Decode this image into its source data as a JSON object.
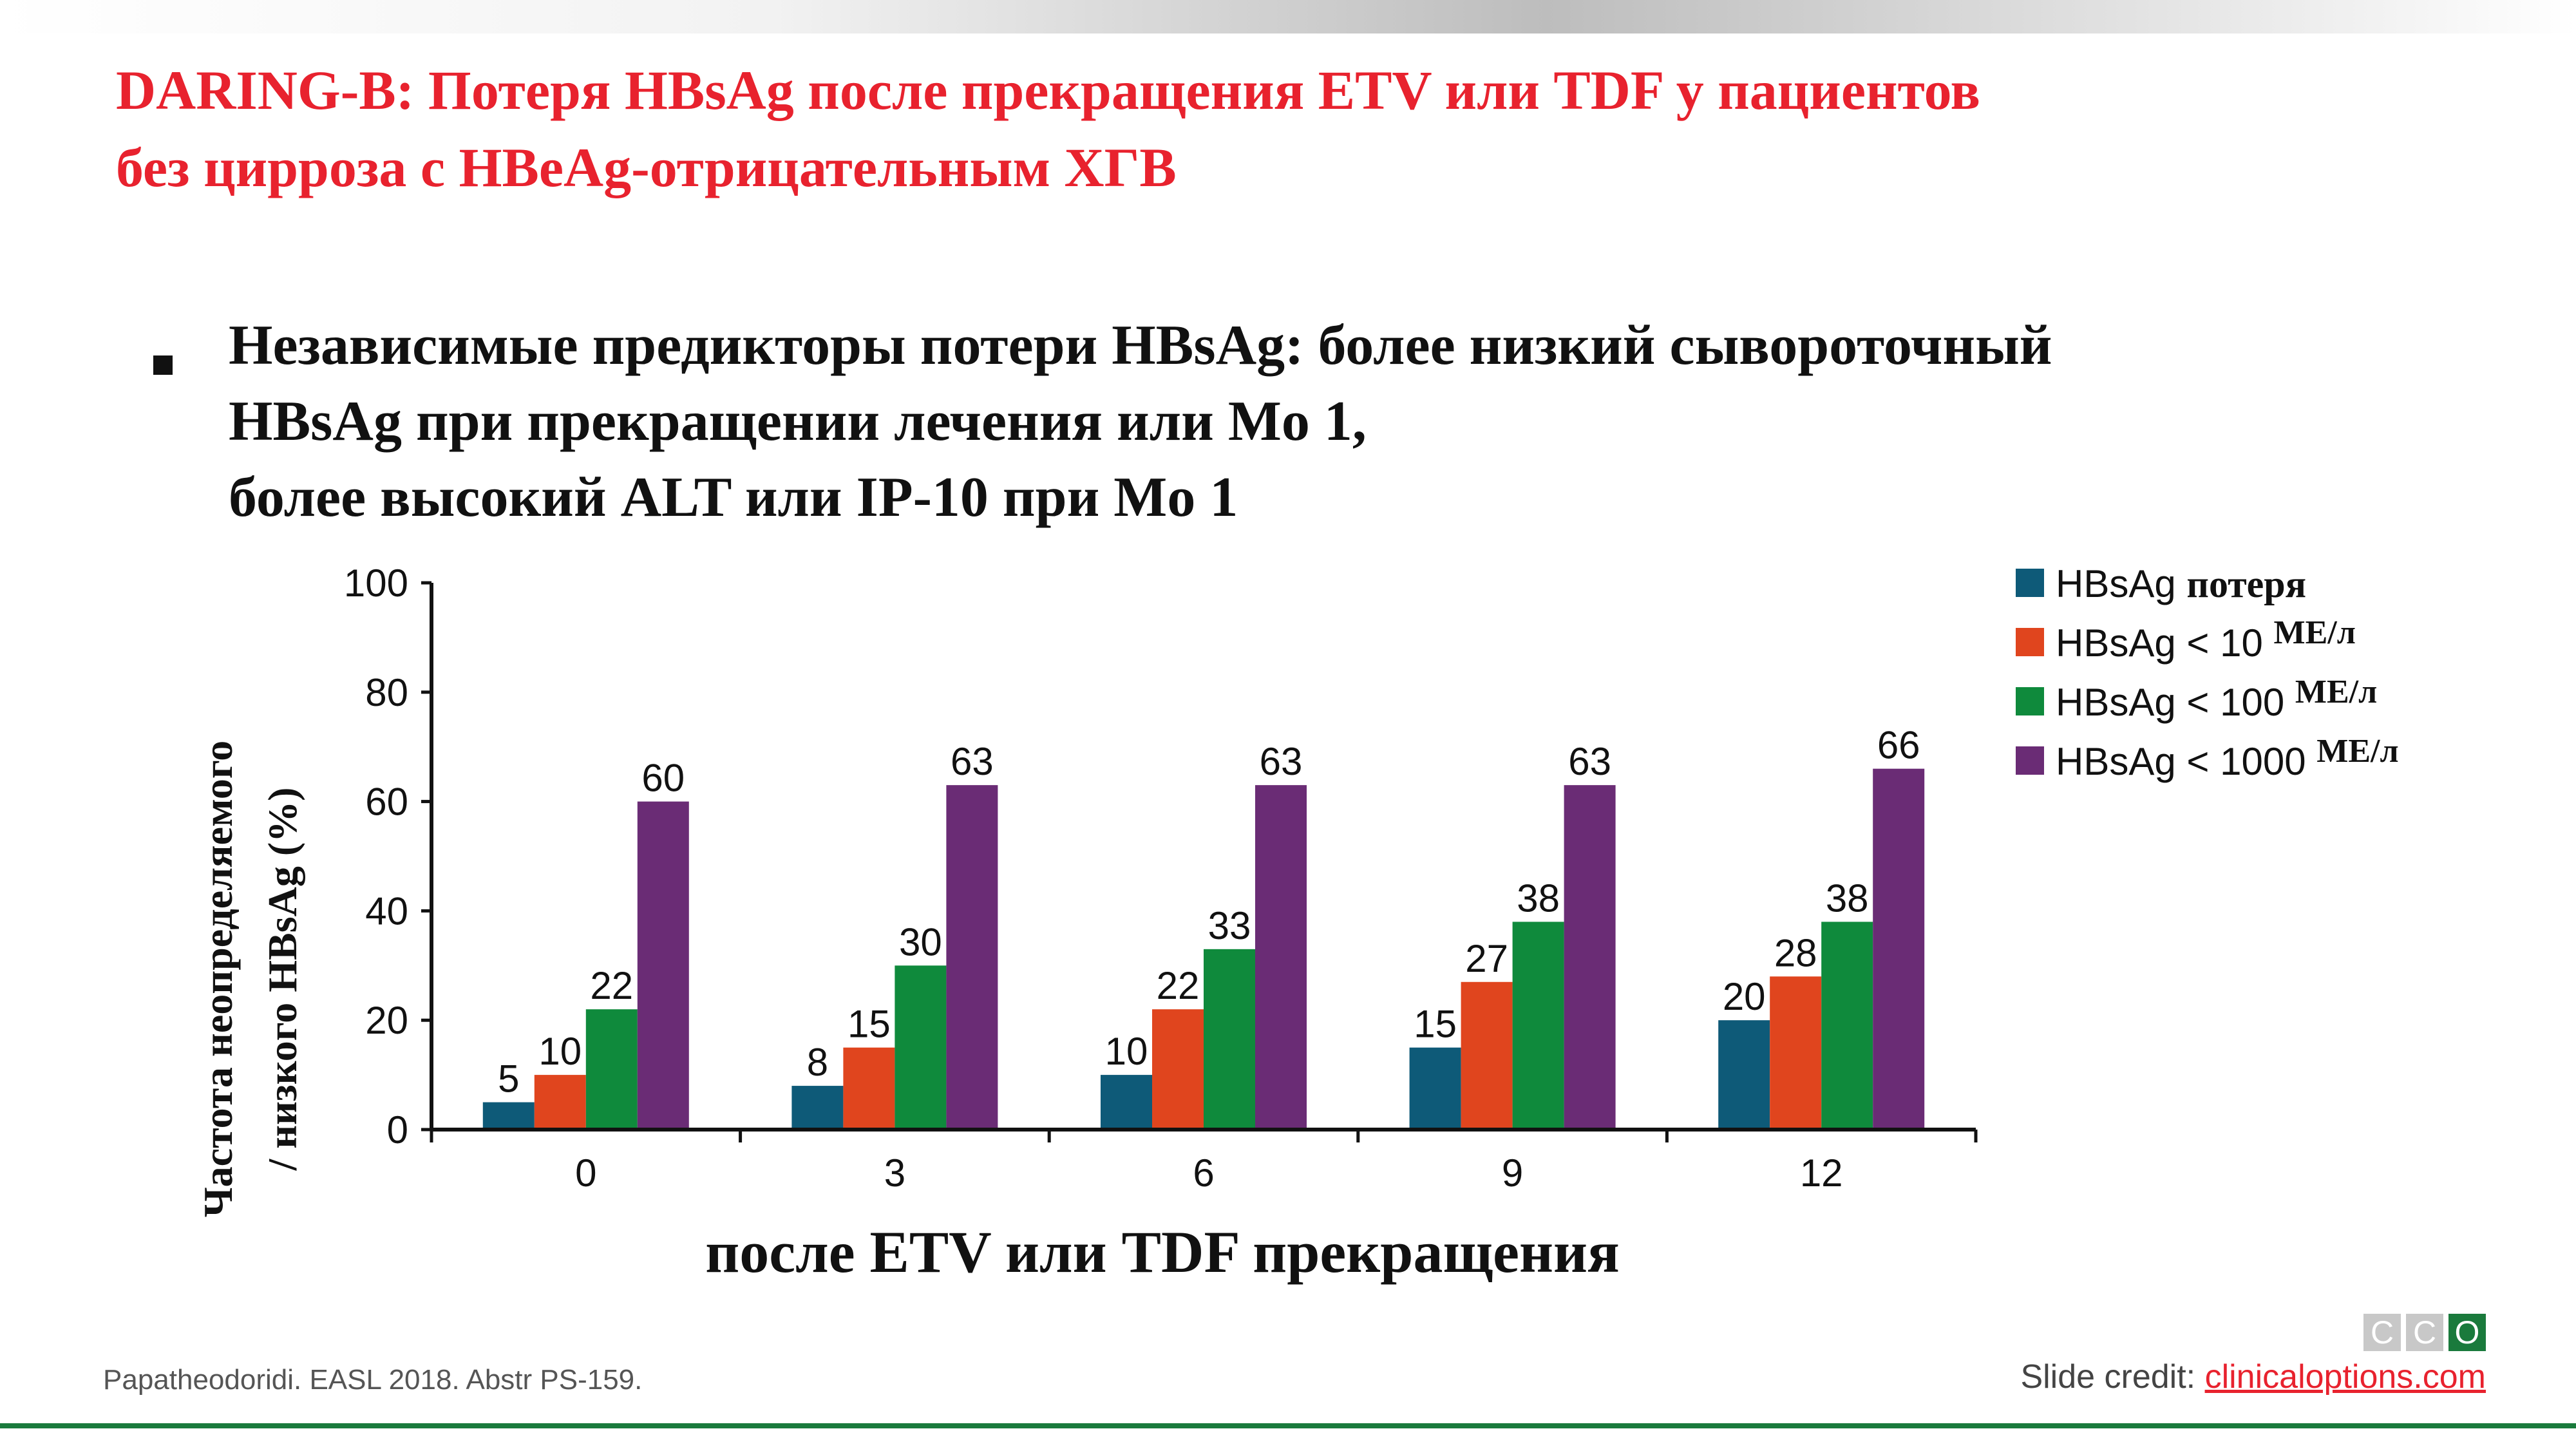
{
  "title": {
    "line1": "DARING-B: Потеря HBsAg после прекращения ETV или TDF у пациентов",
    "line2": "без цирроза с HBeAg-отрицательным ХГВ"
  },
  "bullet": {
    "line1": "Независимые предикторы потери HBsAg: более низкий сывороточный",
    "line2": "HBsAg при прекращении лечения или Mo 1,",
    "line3": "более высокий ALT или IP-10 при Mo 1"
  },
  "chart_data": {
    "type": "bar",
    "xlabel": "после ETV или TDF прекращения",
    "ylabel_line1": "Частота неопределяемого",
    "ylabel_line2": "/ низкого HBsAg (%)",
    "categories": [
      "0",
      "3",
      "6",
      "9",
      "12"
    ],
    "ylim": [
      0,
      100
    ],
    "yticks": [
      0,
      20,
      40,
      60,
      80,
      100
    ],
    "legend_position": "top-right",
    "grid": false,
    "series": [
      {
        "name": "HBsAg",
        "name_suffix": "потеря",
        "color": "#0e5a78",
        "values": [
          5,
          8,
          10,
          15,
          20
        ]
      },
      {
        "name": "HBsAg < 10",
        "name_suffix": "МЕ/л",
        "color": "#e0451e",
        "values": [
          10,
          15,
          22,
          27,
          28
        ]
      },
      {
        "name": "HBsAg < 100",
        "name_suffix": "МЕ/л",
        "color": "#0f8a3c",
        "values": [
          22,
          30,
          33,
          38,
          38
        ]
      },
      {
        "name": "HBsAg < 1000",
        "name_suffix": "МЕ/л",
        "color": "#6a2c75",
        "values": [
          60,
          63,
          63,
          63,
          66
        ]
      }
    ]
  },
  "footer": {
    "citation": "Papatheodoridi. EASL 2018. Abstr PS-159.",
    "credit_label": "Slide credit: ",
    "credit_link": "clinicaloptions.com",
    "logo_letters": [
      "C",
      "C",
      "O"
    ],
    "logo_colors": [
      "#c8c8c8",
      "#c8c8c8",
      "#1a7a3c"
    ]
  }
}
